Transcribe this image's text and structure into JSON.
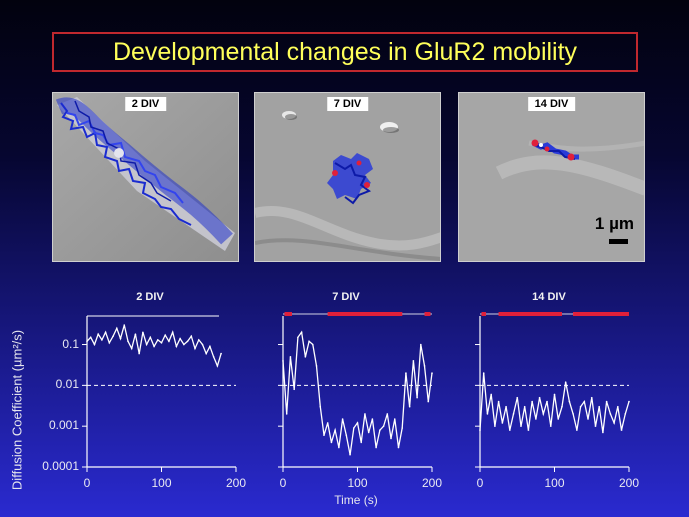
{
  "slide": {
    "title": "Developmental changes in GluR2 mobility"
  },
  "images": [
    {
      "label": "2 DIV"
    },
    {
      "label": "7 DIV"
    },
    {
      "label": "14 DIV",
      "scale_label": "1 µm"
    }
  ],
  "colors": {
    "title_text": "#ffff5a",
    "title_border": "#c0282e",
    "trajectory": "#2233cc",
    "trace": "#ffffff",
    "immobile_bar": "#e0203a"
  },
  "chart_data": [
    {
      "type": "line",
      "title": "2 DIV",
      "ylabel": "Diffusion Coefficient (µm²/s)",
      "xlabel": "",
      "yscale": "log",
      "ylim": [
        0.0001,
        0.5
      ],
      "xlim": [
        0,
        200
      ],
      "xticks": [
        0,
        100,
        200
      ],
      "yticks": [
        0.0001,
        0.001,
        0.01,
        0.1
      ],
      "ytick_labels": [
        "0.0001",
        "0.001",
        "0.01",
        "0.1"
      ],
      "threshold": 0.01,
      "immobile_segments": [],
      "x": [
        0,
        5,
        10,
        15,
        20,
        25,
        30,
        35,
        40,
        45,
        50,
        55,
        60,
        65,
        70,
        75,
        80,
        85,
        90,
        95,
        100,
        105,
        110,
        115,
        120,
        125,
        130,
        135,
        140,
        145,
        150,
        155,
        160,
        165,
        170,
        175,
        180
      ],
      "y": [
        0.12,
        0.15,
        0.1,
        0.18,
        0.13,
        0.2,
        0.11,
        0.16,
        0.25,
        0.14,
        0.3,
        0.12,
        0.08,
        0.18,
        0.06,
        0.2,
        0.1,
        0.15,
        0.09,
        0.13,
        0.11,
        0.17,
        0.12,
        0.2,
        0.09,
        0.14,
        0.1,
        0.12,
        0.16,
        0.08,
        0.13,
        0.1,
        0.06,
        0.09,
        0.05,
        0.03,
        0.06
      ]
    },
    {
      "type": "line",
      "title": "7 DIV",
      "ylabel": "",
      "xlabel": "Time (s)",
      "yscale": "log",
      "ylim": [
        0.0001,
        0.5
      ],
      "xlim": [
        0,
        200
      ],
      "xticks": [
        0,
        100,
        200
      ],
      "yticks": [
        0.0001,
        0.001,
        0.01,
        0.1
      ],
      "ytick_labels": [],
      "threshold": 0.01,
      "immobile_segments": [
        [
          2,
          12
        ],
        [
          60,
          160
        ],
        [
          190,
          198
        ]
      ],
      "x": [
        0,
        5,
        10,
        15,
        20,
        25,
        30,
        35,
        40,
        45,
        50,
        55,
        60,
        65,
        70,
        75,
        80,
        85,
        90,
        95,
        100,
        105,
        110,
        115,
        120,
        125,
        130,
        135,
        140,
        145,
        150,
        155,
        160,
        165,
        170,
        175,
        180,
        185,
        190,
        195,
        200
      ],
      "y": [
        0.04,
        0.002,
        0.05,
        0.008,
        0.15,
        0.2,
        0.05,
        0.12,
        0.1,
        0.03,
        0.003,
        0.0006,
        0.0012,
        0.0004,
        0.0008,
        0.0003,
        0.0015,
        0.0006,
        0.0002,
        0.0009,
        0.0012,
        0.0004,
        0.002,
        0.0007,
        0.0015,
        0.0003,
        0.0008,
        0.001,
        0.002,
        0.0005,
        0.0015,
        0.0003,
        0.0009,
        0.02,
        0.003,
        0.04,
        0.005,
        0.1,
        0.03,
        0.004,
        0.02
      ]
    },
    {
      "type": "line",
      "title": "14 DIV",
      "ylabel": "",
      "xlabel": "",
      "yscale": "log",
      "ylim": [
        0.0001,
        0.5
      ],
      "xlim": [
        0,
        200
      ],
      "xticks": [
        0,
        100,
        200
      ],
      "yticks": [
        0.0001,
        0.001,
        0.01,
        0.1
      ],
      "ytick_labels": [],
      "threshold": 0.01,
      "immobile_segments": [
        [
          2,
          8
        ],
        [
          25,
          110
        ],
        [
          125,
          200
        ]
      ],
      "x": [
        0,
        5,
        10,
        15,
        20,
        25,
        30,
        35,
        40,
        45,
        50,
        55,
        60,
        65,
        70,
        75,
        80,
        85,
        90,
        95,
        100,
        105,
        110,
        115,
        120,
        125,
        130,
        135,
        140,
        145,
        150,
        155,
        160,
        165,
        170,
        175,
        180,
        185,
        190,
        195,
        200
      ],
      "y": [
        0.0008,
        0.02,
        0.002,
        0.006,
        0.001,
        0.004,
        0.0012,
        0.003,
        0.0008,
        0.002,
        0.005,
        0.001,
        0.003,
        0.0008,
        0.004,
        0.0015,
        0.005,
        0.002,
        0.004,
        0.001,
        0.006,
        0.0015,
        0.003,
        0.012,
        0.004,
        0.002,
        0.0008,
        0.003,
        0.004,
        0.0015,
        0.005,
        0.001,
        0.003,
        0.0007,
        0.004,
        0.002,
        0.0012,
        0.003,
        0.0008,
        0.002,
        0.004
      ]
    }
  ],
  "figure": {
    "ylabel": "Diffusion Coefficient (µm²/s)",
    "xlabel": "Time (s)"
  }
}
